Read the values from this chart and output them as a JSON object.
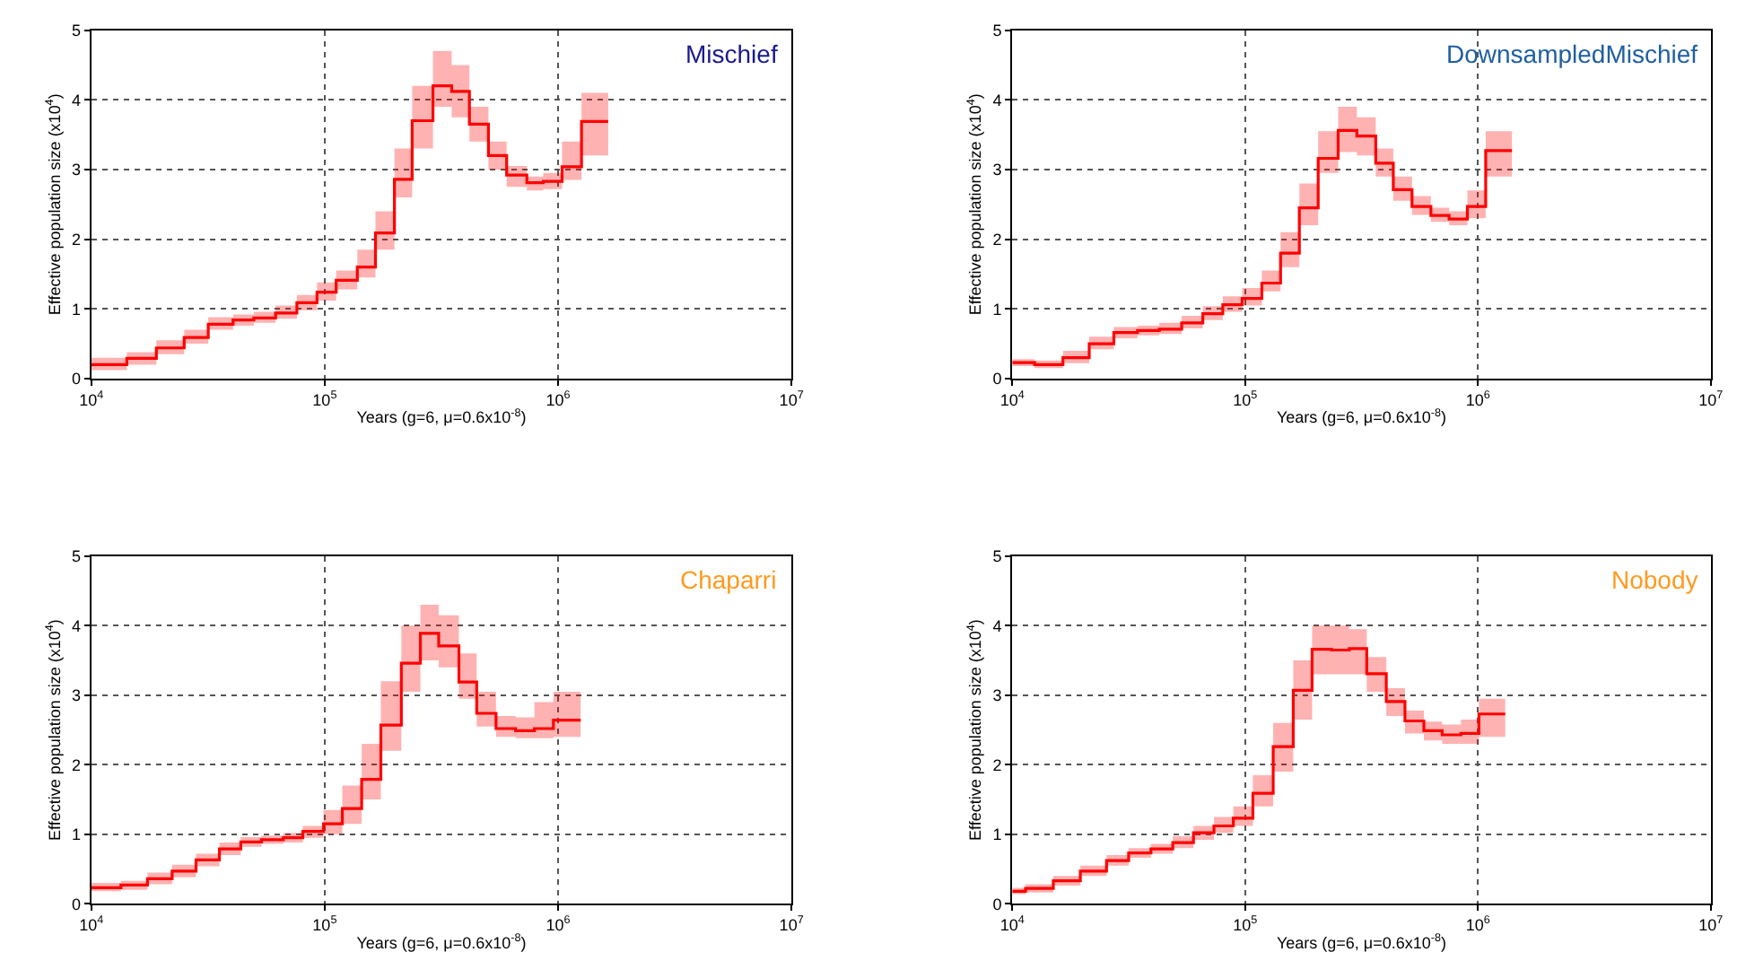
{
  "chart_data": [
    {
      "type": "step",
      "title": "Mischief",
      "xlabel": "Years (g=6, μ=0.6x10$^{-8}$)",
      "ylabel": "Effective population size (x10$^{4}$)",
      "log": "x",
      "grid": true,
      "line_style": "solid",
      "marker": "none",
      "xlim": [
        10000,
        10000000
      ],
      "xticks": [
        {
          "value": 10000,
          "label": "10$^{4}$"
        },
        {
          "value": 100000,
          "label": "10$^{5}$"
        },
        {
          "value": 1000000,
          "label": "10$^{6}$"
        },
        {
          "value": 10000000,
          "label": "10$^{7}$"
        }
      ],
      "ylim": [
        0,
        5
      ],
      "yticks": [
        0,
        1,
        2,
        3,
        4,
        5
      ],
      "series": [
        {
          "color": "#ff0000",
          "x": [
            10000,
            14200,
            19000,
            25000,
            31700,
            40500,
            49700,
            61600,
            76000,
            92700,
            112000,
            138000,
            165000,
            199000,
            237000,
            291000,
            350000,
            417000,
            503000,
            602000,
            735000,
            864000,
            1040000,
            1260000,
            1640000
          ],
          "values": [
            0.2,
            0.29,
            0.44,
            0.59,
            0.78,
            0.84,
            0.87,
            0.94,
            1.09,
            1.24,
            1.41,
            1.6,
            2.09,
            2.86,
            3.7,
            4.2,
            4.12,
            3.65,
            3.2,
            2.92,
            2.81,
            2.83,
            3.04,
            3.69,
            3.69
          ],
          "lower": [
            0.12,
            0.2,
            0.35,
            0.5,
            0.7,
            0.76,
            0.8,
            0.86,
            0.98,
            1.12,
            1.28,
            1.45,
            1.85,
            2.6,
            3.3,
            3.9,
            3.75,
            3.4,
            3.0,
            2.75,
            2.7,
            2.72,
            2.85,
            3.2,
            3.2
          ],
          "upper": [
            0.3,
            0.38,
            0.55,
            0.7,
            0.88,
            0.92,
            0.96,
            1.05,
            1.2,
            1.38,
            1.55,
            1.85,
            2.4,
            3.3,
            4.2,
            4.7,
            4.5,
            3.9,
            3.4,
            3.05,
            2.9,
            2.95,
            3.4,
            4.1,
            4.1
          ]
        }
      ]
    },
    {
      "type": "step",
      "title": "DownsampledMischief",
      "xlabel": "Years (g=6, μ=0.6x10$^{-8}$)",
      "ylabel": "Effective population size (x10$^{4}$)",
      "log": "x",
      "grid": true,
      "line_style": "solid",
      "marker": "none",
      "xlim": [
        10000,
        10000000
      ],
      "xticks": [
        {
          "value": 10000,
          "label": "10$^{4}$"
        },
        {
          "value": 100000,
          "label": "10$^{5}$"
        },
        {
          "value": 1000000,
          "label": "10$^{6}$"
        },
        {
          "value": 10000000,
          "label": "10$^{7}$"
        }
      ],
      "ylim": [
        0,
        5
      ],
      "yticks": [
        0,
        1,
        2,
        3,
        4,
        5
      ],
      "series": [
        {
          "color": "#ff0000",
          "x": [
            10000,
            12470,
            16500,
            21400,
            27300,
            34500,
            42800,
            53400,
            65800,
            80200,
            97100,
            118000,
            142000,
            171000,
            206000,
            251000,
            302000,
            364000,
            433000,
            521000,
            628000,
            752000,
            901000,
            1080000,
            1400000
          ],
          "values": [
            0.23,
            0.2,
            0.3,
            0.5,
            0.66,
            0.69,
            0.71,
            0.8,
            0.93,
            1.06,
            1.15,
            1.37,
            1.8,
            2.45,
            3.16,
            3.56,
            3.48,
            3.09,
            2.71,
            2.47,
            2.34,
            2.29,
            2.47,
            3.27,
            3.27
          ],
          "lower": [
            0.18,
            0.15,
            0.22,
            0.42,
            0.58,
            0.62,
            0.64,
            0.72,
            0.84,
            0.96,
            1.05,
            1.25,
            1.6,
            2.2,
            2.95,
            3.25,
            3.2,
            2.9,
            2.55,
            2.35,
            2.25,
            2.2,
            2.3,
            2.9,
            2.9
          ],
          "upper": [
            0.28,
            0.26,
            0.4,
            0.6,
            0.74,
            0.76,
            0.8,
            0.9,
            1.04,
            1.18,
            1.3,
            1.55,
            2.1,
            2.8,
            3.55,
            3.9,
            3.75,
            3.3,
            2.9,
            2.62,
            2.45,
            2.4,
            2.7,
            3.55,
            3.55
          ]
        }
      ]
    },
    {
      "type": "step",
      "title": "Chaparri",
      "xlabel": "Years (g=6, μ=0.6x10$^{-8}$)",
      "ylabel": "Effective population size (x10$^{4}$)",
      "log": "x",
      "grid": true,
      "line_style": "solid",
      "marker": "none",
      "xlim": [
        10000,
        10000000
      ],
      "xticks": [
        {
          "value": 10000,
          "label": "10$^{4}$"
        },
        {
          "value": 100000,
          "label": "10$^{5}$"
        },
        {
          "value": 1000000,
          "label": "10$^{6}$"
        },
        {
          "value": 10000000,
          "label": "10$^{7}$"
        }
      ],
      "ylim": [
        0,
        5
      ],
      "yticks": [
        0,
        1,
        2,
        3,
        4,
        5
      ],
      "series": [
        {
          "color": "#ff0000",
          "x": [
            10000,
            13400,
            17400,
            22200,
            28100,
            35400,
            43700,
            53600,
            66500,
            80600,
            98800,
            119000,
            144000,
            174000,
            213000,
            257000,
            308000,
            376000,
            448000,
            542000,
            658000,
            792000,
            955000,
            1250000
          ],
          "values": [
            0.23,
            0.27,
            0.36,
            0.47,
            0.63,
            0.79,
            0.89,
            0.92,
            0.95,
            1.04,
            1.15,
            1.37,
            1.79,
            2.57,
            3.46,
            3.89,
            3.71,
            3.19,
            2.74,
            2.52,
            2.49,
            2.52,
            2.64,
            2.64
          ],
          "lower": [
            0.18,
            0.2,
            0.28,
            0.38,
            0.54,
            0.7,
            0.82,
            0.86,
            0.88,
            0.95,
            1.0,
            1.15,
            1.5,
            2.2,
            3.05,
            3.5,
            3.4,
            2.95,
            2.55,
            2.4,
            2.38,
            2.38,
            2.4,
            2.4
          ],
          "upper": [
            0.3,
            0.33,
            0.45,
            0.56,
            0.72,
            0.88,
            0.96,
            0.98,
            1.02,
            1.12,
            1.35,
            1.7,
            2.3,
            3.2,
            4.0,
            4.3,
            4.15,
            3.6,
            3.05,
            2.7,
            2.68,
            2.9,
            3.05,
            3.05
          ]
        }
      ]
    },
    {
      "type": "step",
      "title": "Nobody",
      "xlabel": "Years (g=6, μ=0.6x10$^{-8}$)",
      "ylabel": "Effective population size (x10$^{4}$)",
      "log": "x",
      "grid": true,
      "line_style": "solid",
      "marker": "none",
      "xlim": [
        10000,
        10000000
      ],
      "xticks": [
        {
          "value": 10000,
          "label": "10$^{4}$"
        },
        {
          "value": 100000,
          "label": "10$^{5}$"
        },
        {
          "value": 1000000,
          "label": "10$^{6}$"
        },
        {
          "value": 10000000,
          "label": "10$^{7}$"
        }
      ],
      "ylim": [
        0,
        5
      ],
      "yticks": [
        0,
        1,
        2,
        3,
        4,
        5
      ],
      "series": [
        {
          "color": "#ff0000",
          "x": [
            10000,
            11400,
            15000,
            19600,
            25400,
            31600,
            39400,
            48900,
            60000,
            73500,
            89000,
            108000,
            132000,
            161000,
            194000,
            235000,
            280000,
            333000,
            404000,
            486000,
            586000,
            702000,
            845000,
            1010000,
            1310000
          ],
          "values": [
            0.18,
            0.22,
            0.33,
            0.47,
            0.62,
            0.73,
            0.79,
            0.88,
            1.02,
            1.12,
            1.23,
            1.59,
            2.26,
            3.07,
            3.66,
            3.65,
            3.67,
            3.31,
            2.91,
            2.63,
            2.49,
            2.43,
            2.45,
            2.73,
            2.73
          ],
          "lower": [
            0.14,
            0.16,
            0.26,
            0.4,
            0.55,
            0.66,
            0.72,
            0.8,
            0.92,
            1.02,
            1.12,
            1.4,
            1.9,
            2.65,
            3.3,
            3.3,
            3.3,
            3.05,
            2.7,
            2.45,
            2.35,
            2.3,
            2.3,
            2.4,
            2.4
          ],
          "upper": [
            0.23,
            0.28,
            0.4,
            0.55,
            0.7,
            0.8,
            0.86,
            0.97,
            1.12,
            1.25,
            1.4,
            1.85,
            2.6,
            3.5,
            4.0,
            4.0,
            3.95,
            3.55,
            3.1,
            2.78,
            2.62,
            2.58,
            2.65,
            2.95,
            2.95
          ]
        }
      ]
    }
  ]
}
